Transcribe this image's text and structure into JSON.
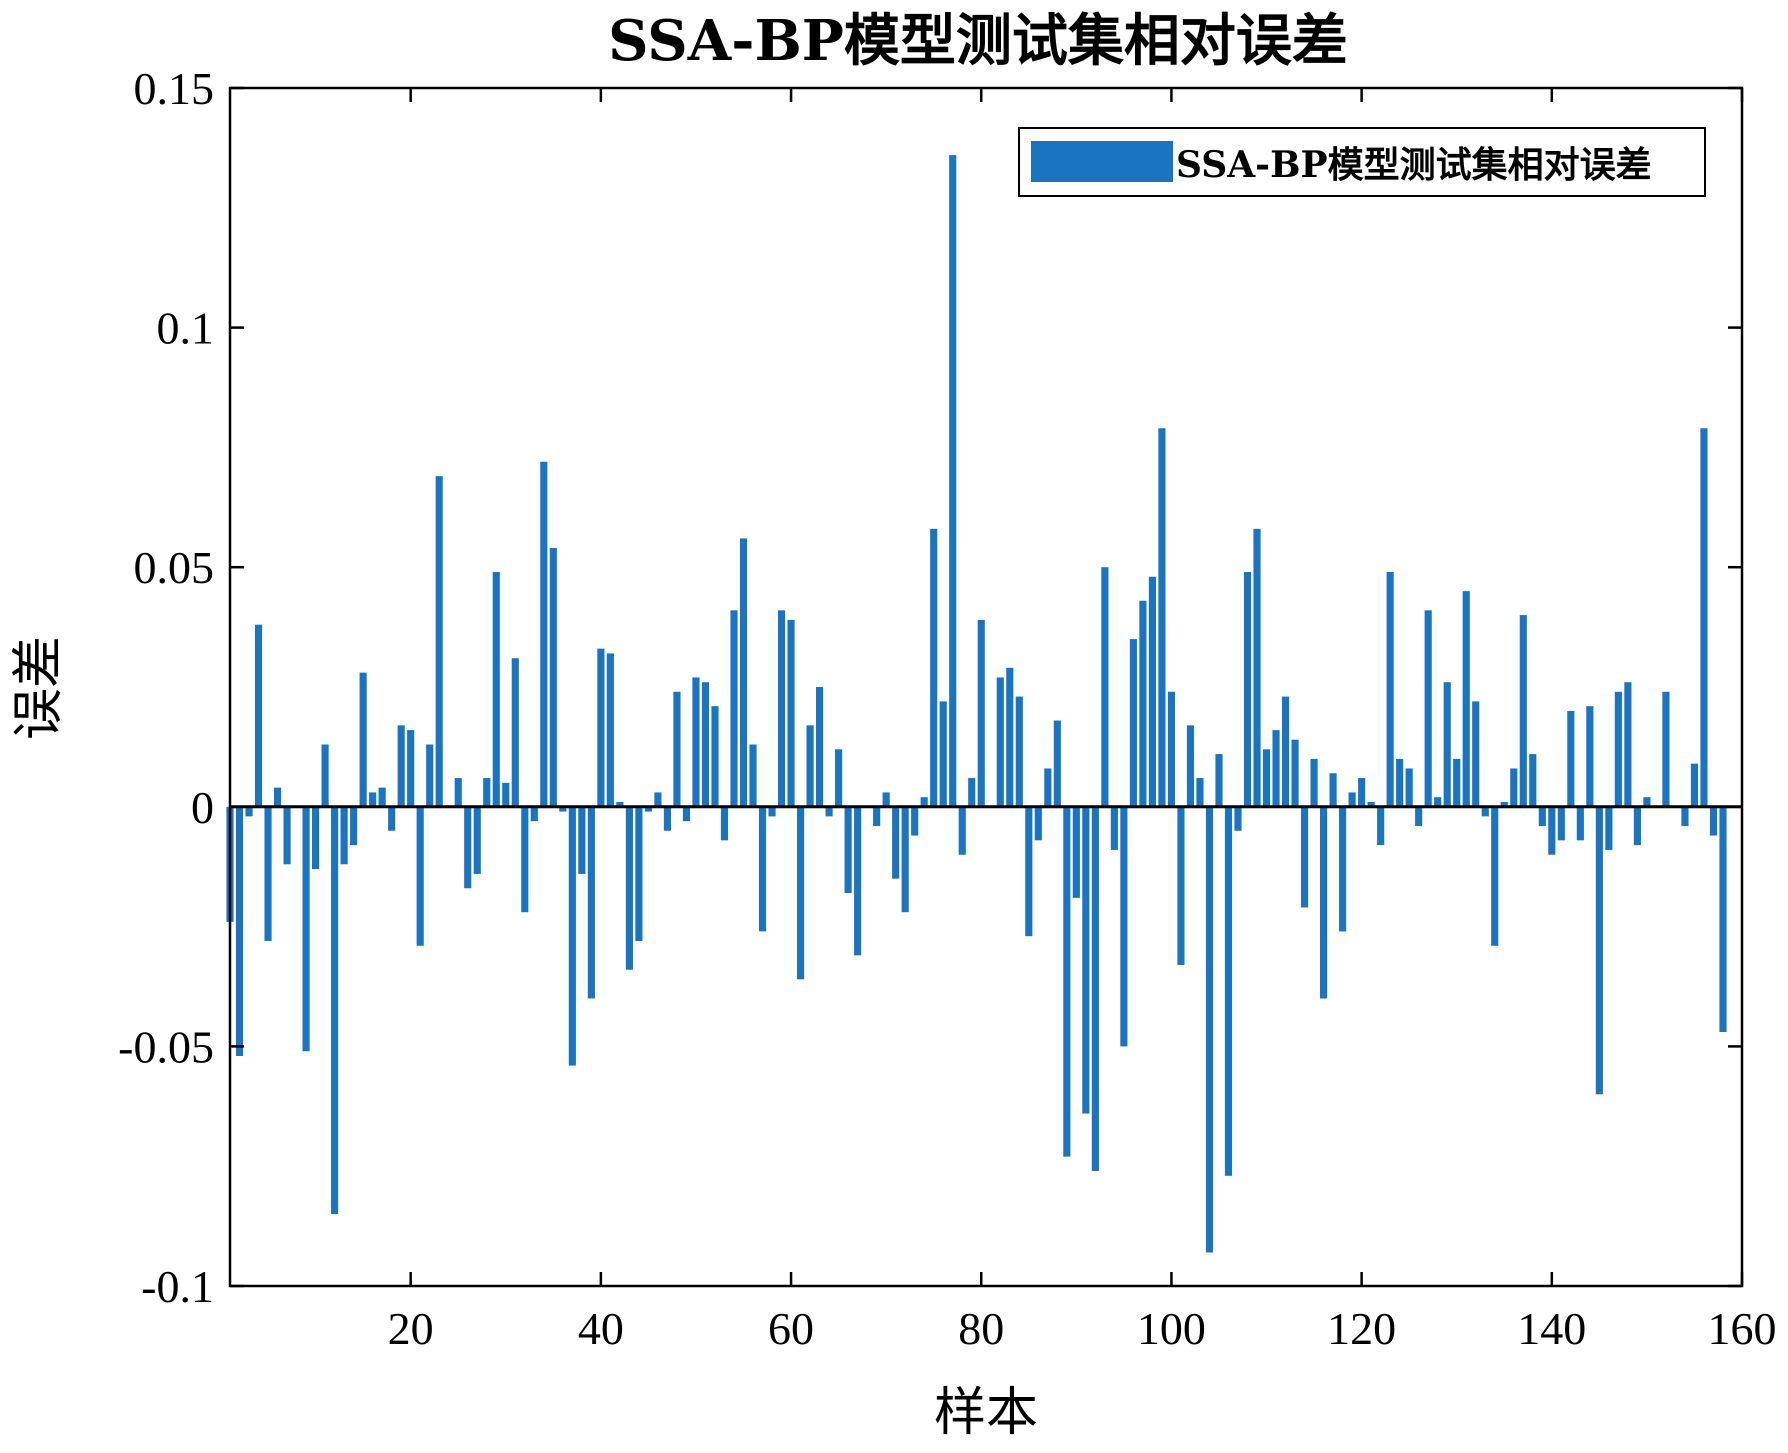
{
  "chart_data": {
    "type": "bar",
    "title": "SSA-BP模型测试集相对误差",
    "xlabel": "样本",
    "ylabel": "误差",
    "xlim": [
      1,
      160
    ],
    "ylim": [
      -0.1,
      0.15
    ],
    "xticks": [
      20,
      40,
      60,
      80,
      100,
      120,
      140,
      160
    ],
    "xtick_labels": [
      "20",
      "40",
      "60",
      "80",
      "100",
      "120",
      "140",
      "160"
    ],
    "yticks": [
      -0.1,
      -0.05,
      0,
      0.05,
      0.1,
      0.15
    ],
    "ytick_labels": [
      "-0.1",
      "-0.05",
      "0",
      "0.05",
      "0.1",
      "0.15"
    ],
    "grid": false,
    "legend_position": "top-right",
    "colors": {
      "bar": "#1a74c2",
      "axis": "#000000",
      "zero_line": "#000000"
    },
    "series": [
      {
        "name": "SSA-BP模型测试集相对误差",
        "x": [
          1,
          2,
          3,
          4,
          5,
          6,
          7,
          8,
          9,
          10,
          11,
          12,
          13,
          14,
          15,
          16,
          17,
          18,
          19,
          20,
          21,
          22,
          23,
          24,
          25,
          26,
          27,
          28,
          29,
          30,
          31,
          32,
          33,
          34,
          35,
          36,
          37,
          38,
          39,
          40,
          41,
          42,
          43,
          44,
          45,
          46,
          47,
          48,
          49,
          50,
          51,
          52,
          53,
          54,
          55,
          56,
          57,
          58,
          59,
          60,
          61,
          62,
          63,
          64,
          65,
          66,
          67,
          68,
          69,
          70,
          71,
          72,
          73,
          74,
          75,
          76,
          77,
          78,
          79,
          80,
          81,
          82,
          83,
          84,
          85,
          86,
          87,
          88,
          89,
          90,
          91,
          92,
          93,
          94,
          95,
          96,
          97,
          98,
          99,
          100,
          101,
          102,
          103,
          104,
          105,
          106,
          107,
          108,
          109,
          110,
          111,
          112,
          113,
          114,
          115,
          116,
          117,
          118,
          119,
          120,
          121,
          122,
          123,
          124,
          125,
          126,
          127,
          128,
          129,
          130,
          131,
          132,
          133,
          134,
          135,
          136,
          137,
          138,
          139,
          140,
          141,
          142,
          143,
          144,
          145,
          146,
          147,
          148,
          149,
          150,
          151,
          152,
          153,
          154,
          155,
          156,
          157,
          158
        ],
        "values": [
          -0.024,
          -0.052,
          -0.002,
          0.038,
          -0.028,
          0.004,
          -0.012,
          0.0,
          -0.051,
          -0.013,
          0.013,
          -0.085,
          -0.012,
          -0.008,
          0.028,
          0.003,
          0.004,
          -0.005,
          0.017,
          0.016,
          -0.029,
          0.013,
          0.069,
          0.0,
          0.006,
          -0.017,
          -0.014,
          0.006,
          0.049,
          0.005,
          0.031,
          -0.022,
          -0.003,
          0.072,
          0.054,
          -0.001,
          -0.054,
          -0.014,
          -0.04,
          0.033,
          0.032,
          0.001,
          -0.034,
          -0.028,
          -0.001,
          0.003,
          -0.005,
          0.024,
          -0.003,
          0.027,
          0.026,
          0.021,
          -0.007,
          0.041,
          0.056,
          0.013,
          -0.026,
          -0.002,
          0.041,
          0.039,
          -0.036,
          0.017,
          0.025,
          -0.002,
          0.012,
          -0.018,
          -0.031,
          0.0,
          -0.004,
          0.003,
          -0.015,
          -0.022,
          -0.006,
          0.002,
          0.058,
          0.022,
          0.136,
          -0.01,
          0.006,
          0.039,
          0.0,
          0.027,
          0.029,
          0.023,
          -0.027,
          -0.007,
          0.008,
          0.018,
          -0.073,
          -0.019,
          -0.064,
          -0.076,
          0.05,
          -0.009,
          -0.05,
          0.035,
          0.043,
          0.048,
          0.079,
          0.024,
          -0.033,
          0.017,
          0.006,
          -0.093,
          0.011,
          -0.077,
          -0.005,
          0.049,
          0.058,
          0.012,
          0.016,
          0.023,
          0.014,
          -0.021,
          0.01,
          -0.04,
          0.007,
          -0.026,
          0.003,
          0.006,
          0.001,
          -0.008,
          0.049,
          0.01,
          0.008,
          -0.004,
          0.041,
          0.002,
          0.026,
          0.01,
          0.045,
          0.022,
          -0.002,
          -0.029,
          0.001,
          0.008,
          0.04,
          0.011,
          -0.004,
          -0.01,
          -0.007,
          0.02,
          -0.007,
          0.021,
          -0.06,
          -0.009,
          0.024,
          0.026,
          -0.008,
          0.002,
          0.0,
          0.024,
          0.0,
          -0.004,
          0.009,
          0.079,
          -0.006,
          -0.047
        ]
      }
    ]
  }
}
